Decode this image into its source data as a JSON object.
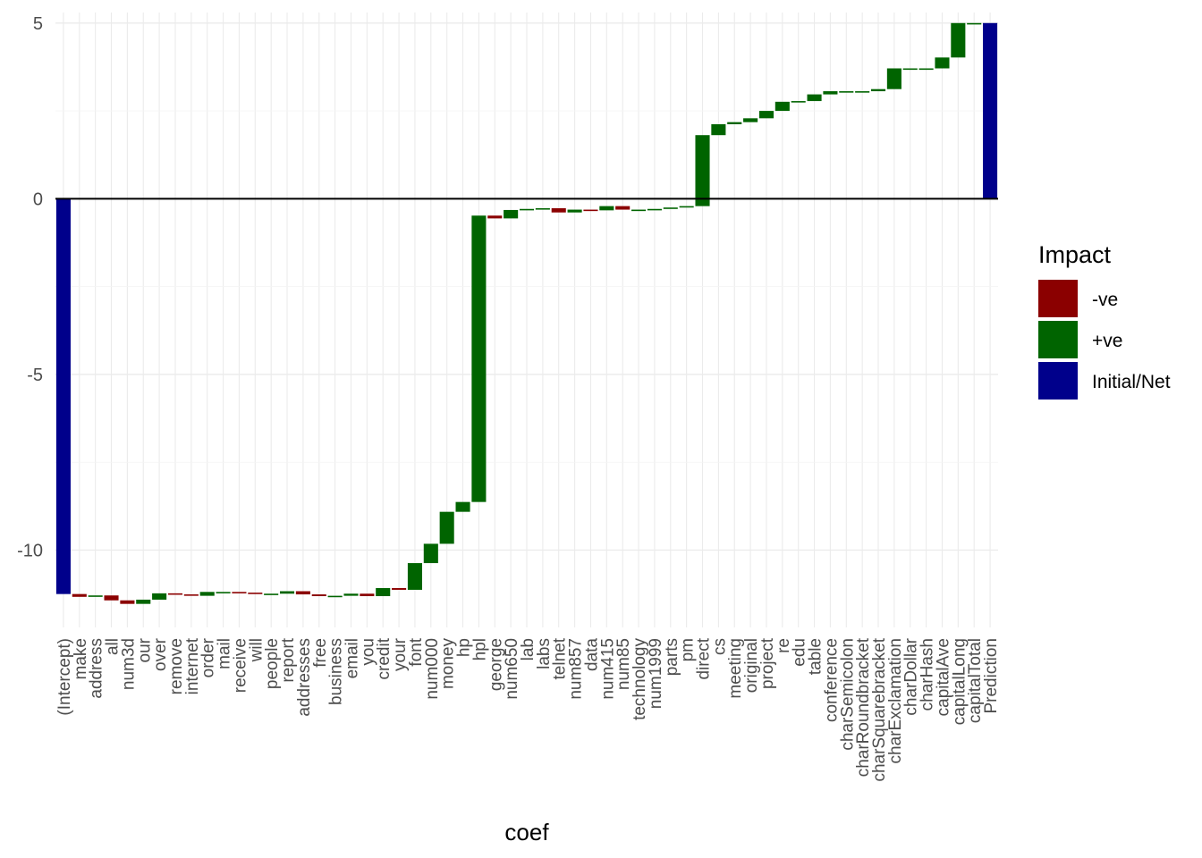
{
  "chart_data": {
    "type": "waterfall",
    "xlabel": "coef",
    "ylabel": "",
    "ylim": [
      -12.2,
      5.3
    ],
    "yticks": [
      -10,
      -5,
      0,
      5
    ],
    "grid": true,
    "legend": {
      "title": "Impact",
      "position": "right",
      "items": [
        {
          "label": "-ve",
          "color": "#8B0000"
        },
        {
          "label": "+ve",
          "color": "#006400"
        },
        {
          "label": "Initial/Net",
          "color": "#00008B"
        }
      ]
    },
    "categories": [
      "(Intercept)",
      "make",
      "address",
      "all",
      "num3d",
      "our",
      "over",
      "remove",
      "internet",
      "order",
      "mail",
      "receive",
      "will",
      "people",
      "report",
      "addresses",
      "free",
      "business",
      "email",
      "you",
      "credit",
      "your",
      "font",
      "num000",
      "money",
      "hp",
      "hpl",
      "george",
      "num650",
      "lab",
      "labs",
      "telnet",
      "num857",
      "data",
      "num415",
      "num85",
      "technology",
      "num1999",
      "parts",
      "pm",
      "direct",
      "cs",
      "meeting",
      "original",
      "project",
      "re",
      "edu",
      "table",
      "conference",
      "charSemicolon",
      "charRoundbracket",
      "charSquarebracket",
      "charExclamation",
      "charDollar",
      "charHash",
      "capitalAve",
      "capitalLong",
      "capitalTotal",
      "Prediction"
    ],
    "bars": [
      {
        "label": "(Intercept)",
        "start": 0,
        "end": -11.25,
        "impact": "Initial/Net"
      },
      {
        "label": "make",
        "start": -11.25,
        "end": -11.33,
        "impact": "-ve"
      },
      {
        "label": "address",
        "start": -11.33,
        "end": -11.29,
        "impact": "+ve"
      },
      {
        "label": "all",
        "start": -11.29,
        "end": -11.43,
        "impact": "-ve"
      },
      {
        "label": "num3d",
        "start": -11.43,
        "end": -11.53,
        "impact": "-ve"
      },
      {
        "label": "our",
        "start": -11.53,
        "end": -11.41,
        "impact": "+ve"
      },
      {
        "label": "over",
        "start": -11.41,
        "end": -11.23,
        "impact": "+ve"
      },
      {
        "label": "remove",
        "start": -11.23,
        "end": -11.26,
        "impact": "-ve"
      },
      {
        "label": "internet",
        "start": -11.26,
        "end": -11.3,
        "impact": "-ve"
      },
      {
        "label": "order",
        "start": -11.3,
        "end": -11.19,
        "impact": "+ve"
      },
      {
        "label": "mail",
        "start": -11.19,
        "end": -11.19,
        "impact": "+ve"
      },
      {
        "label": "receive",
        "start": -11.19,
        "end": -11.21,
        "impact": "-ve"
      },
      {
        "label": "will",
        "start": -11.21,
        "end": -11.25,
        "impact": "-ve"
      },
      {
        "label": "people",
        "start": -11.25,
        "end": -11.24,
        "impact": "+ve"
      },
      {
        "label": "report",
        "start": -11.24,
        "end": -11.17,
        "impact": "+ve"
      },
      {
        "label": "addresses",
        "start": -11.17,
        "end": -11.26,
        "impact": "-ve"
      },
      {
        "label": "free",
        "start": -11.26,
        "end": -11.31,
        "impact": "-ve"
      },
      {
        "label": "business",
        "start": -11.31,
        "end": -11.3,
        "impact": "+ve"
      },
      {
        "label": "email",
        "start": -11.3,
        "end": -11.24,
        "impact": "+ve"
      },
      {
        "label": "you",
        "start": -11.24,
        "end": -11.31,
        "impact": "-ve"
      },
      {
        "label": "credit",
        "start": -11.31,
        "end": -11.08,
        "impact": "+ve"
      },
      {
        "label": "your",
        "start": -11.08,
        "end": -11.13,
        "impact": "-ve"
      },
      {
        "label": "font",
        "start": -11.13,
        "end": -10.37,
        "impact": "+ve"
      },
      {
        "label": "num000",
        "start": -10.37,
        "end": -9.82,
        "impact": "+ve"
      },
      {
        "label": "money",
        "start": -9.82,
        "end": -8.91,
        "impact": "+ve"
      },
      {
        "label": "hp",
        "start": -8.91,
        "end": -8.63,
        "impact": "+ve"
      },
      {
        "label": "hpl",
        "start": -8.63,
        "end": -0.48,
        "impact": "+ve"
      },
      {
        "label": "george",
        "start": -0.48,
        "end": -0.56,
        "impact": "-ve"
      },
      {
        "label": "num650",
        "start": -0.56,
        "end": -0.32,
        "impact": "+ve"
      },
      {
        "label": "lab",
        "start": -0.32,
        "end": -0.29,
        "impact": "+ve"
      },
      {
        "label": "labs",
        "start": -0.29,
        "end": -0.27,
        "impact": "+ve"
      },
      {
        "label": "telnet",
        "start": -0.27,
        "end": -0.39,
        "impact": "-ve"
      },
      {
        "label": "num857",
        "start": -0.39,
        "end": -0.31,
        "impact": "+ve"
      },
      {
        "label": "data",
        "start": -0.31,
        "end": -0.33,
        "impact": "-ve"
      },
      {
        "label": "num415",
        "start": -0.33,
        "end": -0.21,
        "impact": "+ve"
      },
      {
        "label": "num85",
        "start": -0.21,
        "end": -0.31,
        "impact": "-ve"
      },
      {
        "label": "technology",
        "start": -0.31,
        "end": -0.31,
        "impact": "+ve"
      },
      {
        "label": "num1999",
        "start": -0.31,
        "end": -0.29,
        "impact": "+ve"
      },
      {
        "label": "parts",
        "start": -0.29,
        "end": -0.25,
        "impact": "+ve"
      },
      {
        "label": "pm",
        "start": -0.25,
        "end": -0.21,
        "impact": "+ve"
      },
      {
        "label": "direct",
        "start": -0.21,
        "end": 1.81,
        "impact": "+ve"
      },
      {
        "label": "cs",
        "start": 1.81,
        "end": 2.12,
        "impact": "+ve"
      },
      {
        "label": "meeting",
        "start": 2.12,
        "end": 2.18,
        "impact": "+ve"
      },
      {
        "label": "original",
        "start": 2.18,
        "end": 2.29,
        "impact": "+ve"
      },
      {
        "label": "project",
        "start": 2.29,
        "end": 2.5,
        "impact": "+ve"
      },
      {
        "label": "re",
        "start": 2.5,
        "end": 2.76,
        "impact": "+ve"
      },
      {
        "label": "edu",
        "start": 2.76,
        "end": 2.78,
        "impact": "+ve"
      },
      {
        "label": "table",
        "start": 2.78,
        "end": 2.97,
        "impact": "+ve"
      },
      {
        "label": "conference",
        "start": 2.97,
        "end": 3.06,
        "impact": "+ve"
      },
      {
        "label": "charSemicolon",
        "start": 3.06,
        "end": 3.06,
        "impact": "+ve"
      },
      {
        "label": "charRoundbracket",
        "start": 3.06,
        "end": 3.06,
        "impact": "+ve"
      },
      {
        "label": "charSquarebracket",
        "start": 3.06,
        "end": 3.12,
        "impact": "+ve"
      },
      {
        "label": "charExclamation",
        "start": 3.12,
        "end": 3.71,
        "impact": "+ve"
      },
      {
        "label": "charDollar",
        "start": 3.71,
        "end": 3.71,
        "impact": "+ve"
      },
      {
        "label": "charHash",
        "start": 3.71,
        "end": 3.71,
        "impact": "+ve"
      },
      {
        "label": "capitalAve",
        "start": 3.71,
        "end": 4.02,
        "impact": "+ve"
      },
      {
        "label": "capitalLong",
        "start": 4.02,
        "end": 5.0,
        "impact": "+ve"
      },
      {
        "label": "capitalTotal",
        "start": 5.0,
        "end": 5.0,
        "impact": "+ve"
      },
      {
        "label": "Prediction",
        "start": 0,
        "end": 5.0,
        "impact": "Initial/Net"
      }
    ]
  }
}
